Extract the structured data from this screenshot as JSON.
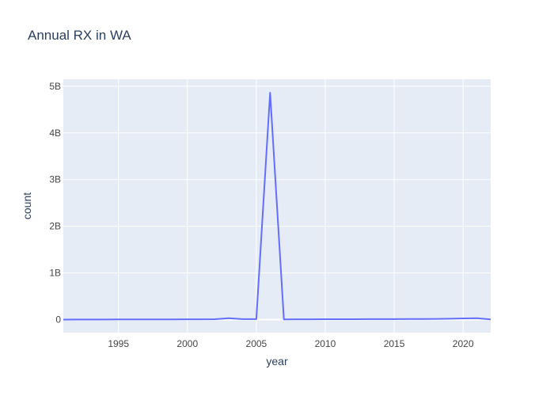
{
  "chart_data": {
    "type": "line",
    "title": "Annual RX in WA",
    "xlabel": "year",
    "ylabel": "count",
    "xlim": [
      1991,
      2022
    ],
    "ylim": [
      -280000000.0,
      5150000000.0
    ],
    "x_ticks": [
      1995,
      2000,
      2005,
      2010,
      2015,
      2020
    ],
    "x_tick_labels": [
      "1995",
      "2000",
      "2005",
      "2010",
      "2015",
      "2020"
    ],
    "y_ticks": [
      0,
      1000000000.0,
      2000000000.0,
      3000000000.0,
      4000000000.0,
      5000000000.0
    ],
    "y_tick_labels": [
      "0",
      "1B",
      "2B",
      "3B",
      "4B",
      "5B"
    ],
    "grid": true,
    "colors": {
      "plot_bg": "#e5ecf6",
      "grid": "#ffffff",
      "line": "#636efa",
      "text": "#2a3f5f",
      "tick_text": "#444444"
    },
    "series": [
      {
        "x": [
          1991,
          1992,
          1993,
          1994,
          1995,
          1996,
          1997,
          1998,
          1999,
          2000,
          2001,
          2002,
          2003,
          2004,
          2005,
          2006,
          2007,
          2008,
          2009,
          2010,
          2011,
          2012,
          2013,
          2014,
          2015,
          2016,
          2017,
          2018,
          2019,
          2020,
          2021,
          2022
        ],
        "y": [
          0,
          2000000,
          3000000,
          3000000,
          4000000,
          4000000,
          5000000,
          5000000,
          5000000,
          6000000,
          6000000,
          8000000,
          30000000,
          10000000,
          10000000,
          4860000000,
          5000000,
          6000000,
          7000000,
          8000000,
          9000000,
          9000000,
          10000000,
          10000000,
          11000000,
          12000000,
          12000000,
          15000000,
          20000000,
          25000000,
          30000000,
          5000000
        ]
      }
    ]
  }
}
